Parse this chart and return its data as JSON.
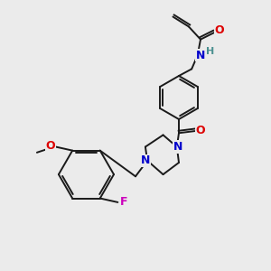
{
  "background_color": "#ebebeb",
  "bond_color": "#1a1a1a",
  "atom_colors": {
    "O": "#dd0000",
    "N": "#0000cc",
    "F": "#cc00bb",
    "H": "#4a9090",
    "C": "#1a1a1a"
  },
  "figsize": [
    3.0,
    3.0
  ],
  "dpi": 100
}
